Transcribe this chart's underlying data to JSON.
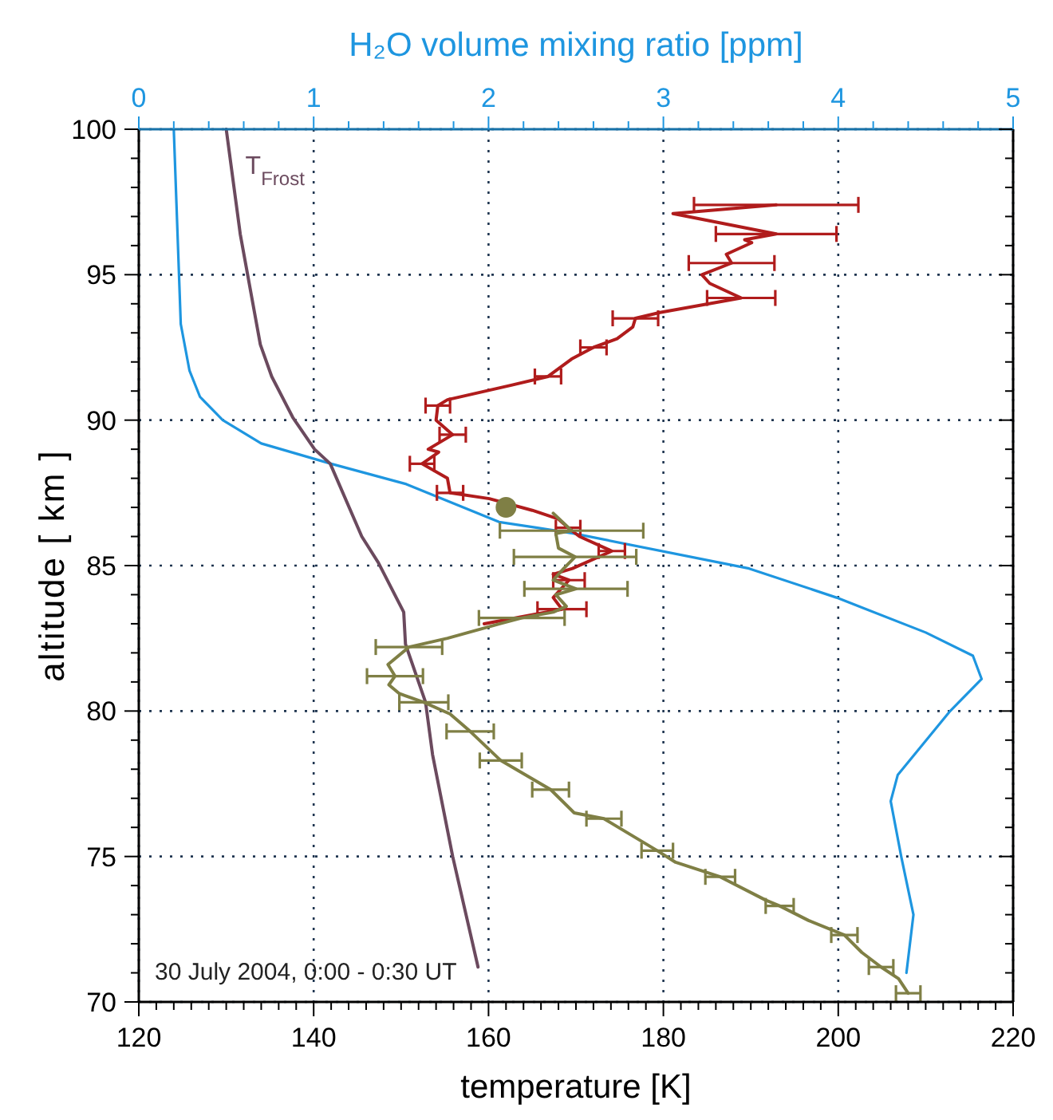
{
  "chart_data": {
    "type": "line",
    "xlabel": "temperature [K]",
    "ylabel": "altitude [ km ]",
    "x2label": "H₂O volume mixing ratio [ppm]",
    "annotations": [
      "30 July 2004, 0:00 - 0:30 UT"
    ],
    "xlim": [
      120,
      220
    ],
    "ylim": [
      70,
      100
    ],
    "x2lim": [
      0,
      5
    ],
    "xticks": [
      120,
      {
        "value": 122,
        "label": null
      },
      {
        "value": 124,
        "label": null
      },
      {
        "value": 126,
        "label": null
      },
      {
        "value": 128,
        "label": null
      },
      {
        "value": 130,
        "label": null
      },
      {
        "value": 132,
        "label": null
      },
      {
        "value": 134,
        "label": null
      },
      {
        "value": 136,
        "label": null
      },
      {
        "value": 138,
        "label": null
      },
      140,
      {
        "value": 142,
        "label": null
      },
      {
        "value": 144,
        "label": null
      },
      {
        "value": 146,
        "label": null
      },
      {
        "value": 148,
        "label": null
      },
      {
        "value": 150,
        "label": null
      },
      {
        "value": 152,
        "label": null
      },
      {
        "value": 154,
        "label": null
      },
      {
        "value": 156,
        "label": null
      },
      {
        "value": 158,
        "label": null
      },
      160,
      {
        "value": 162,
        "label": null
      },
      {
        "value": 164,
        "label": null
      },
      {
        "value": 166,
        "label": null
      },
      {
        "value": 168,
        "label": null
      },
      {
        "value": 170,
        "label": null
      },
      {
        "value": 172,
        "label": null
      },
      {
        "value": 174,
        "label": null
      },
      {
        "value": 176,
        "label": null
      },
      {
        "value": 178,
        "label": null
      },
      180,
      {
        "value": 182,
        "label": null
      },
      {
        "value": 184,
        "label": null
      },
      {
        "value": 186,
        "label": null
      },
      {
        "value": 188,
        "label": null
      },
      {
        "value": 190,
        "label": null
      },
      {
        "value": 192,
        "label": null
      },
      {
        "value": 194,
        "label": null
      },
      {
        "value": 196,
        "label": null
      },
      {
        "value": 198,
        "label": null
      },
      200,
      {
        "value": 202,
        "label": null
      },
      {
        "value": 204,
        "label": null
      },
      {
        "value": 206,
        "label": null
      },
      {
        "value": 208,
        "label": null
      },
      {
        "value": 210,
        "label": null
      },
      {
        "value": 212,
        "label": null
      },
      {
        "value": 214,
        "label": null
      },
      {
        "value": 216,
        "label": null
      },
      {
        "value": 218,
        "label": null
      },
      220
    ],
    "yticks": [
      70,
      {
        "value": 71,
        "label": null
      },
      {
        "value": 72,
        "label": null
      },
      {
        "value": 73,
        "label": null
      },
      {
        "value": 74,
        "label": null
      },
      75,
      {
        "value": 76,
        "label": null
      },
      {
        "value": 77,
        "label": null
      },
      {
        "value": 78,
        "label": null
      },
      {
        "value": 79,
        "label": null
      },
      80,
      {
        "value": 81,
        "label": null
      },
      {
        "value": 82,
        "label": null
      },
      {
        "value": 83,
        "label": null
      },
      {
        "value": 84,
        "label": null
      },
      85,
      {
        "value": 86,
        "label": null
      },
      {
        "value": 87,
        "label": null
      },
      {
        "value": 88,
        "label": null
      },
      {
        "value": 89,
        "label": null
      },
      90,
      {
        "value": 91,
        "label": null
      },
      {
        "value": 92,
        "label": null
      },
      {
        "value": 93,
        "label": null
      },
      {
        "value": 94,
        "label": null
      },
      95,
      {
        "value": 96,
        "label": null
      },
      {
        "value": 97,
        "label": null
      },
      {
        "value": 98,
        "label": null
      },
      {
        "value": 99,
        "label": null
      },
      100
    ],
    "x2ticks": [
      0,
      {
        "value": 0.2,
        "label": null
      },
      {
        "value": 0.4,
        "label": null
      },
      {
        "value": 0.6,
        "label": null
      },
      {
        "value": 0.8,
        "label": null
      },
      1,
      {
        "value": 1.2,
        "label": null
      },
      {
        "value": 1.4,
        "label": null
      },
      {
        "value": 1.6,
        "label": null
      },
      {
        "value": 1.8,
        "label": null
      },
      2,
      {
        "value": 2.2,
        "label": null
      },
      {
        "value": 2.4,
        "label": null
      },
      {
        "value": 2.6,
        "label": null
      },
      {
        "value": 2.8,
        "label": null
      },
      3,
      {
        "value": 3.2,
        "label": null
      },
      {
        "value": 3.4,
        "label": null
      },
      {
        "value": 3.6,
        "label": null
      },
      {
        "value": 3.8,
        "label": null
      },
      4,
      {
        "value": 4.2,
        "label": null
      },
      {
        "value": 4.4,
        "label": null
      },
      {
        "value": 4.6,
        "label": null
      },
      {
        "value": 4.8,
        "label": null
      },
      5
    ],
    "grid": true,
    "series": [
      {
        "axis": "x2",
        "color": "#1e96e0",
        "x": [
          0.2,
          0.24,
          0.29,
          0.35,
          0.48,
          0.7,
          1.1,
          1.53,
          2.06,
          2.28,
          2.49,
          3.49,
          3.99,
          4.5,
          4.77,
          4.82,
          4.64,
          4.34,
          4.3,
          4.36,
          4.43,
          4.39
        ],
        "values": [
          100,
          93.3,
          91.7,
          90.8,
          90.0,
          89.2,
          88.5,
          87.8,
          86.5,
          86.3,
          86.1,
          84.9,
          83.9,
          82.7,
          81.9,
          81.1,
          80.0,
          77.8,
          76.9,
          75.0,
          73.0,
          71.0
        ]
      },
      {
        "name": "T$_{Frost}$",
        "color": "#6b4a5e",
        "x": [
          130.0,
          131.6,
          133.9,
          135.2,
          137.6,
          140.1,
          141.9,
          145.5,
          147.4,
          150.3,
          150.5,
          152.8,
          153.6,
          155.9,
          158.8
        ],
        "values": [
          100,
          96.4,
          92.6,
          91.5,
          90.1,
          89.0,
          88.5,
          86.0,
          85.1,
          83.4,
          82.3,
          80.3,
          78.5,
          75.0,
          71.2
        ]
      },
      {
        "color": "#b01c1c",
        "x": [
          192.9,
          181.1,
          192.9,
          189.3,
          190.1,
          187.2,
          187.8,
          184.4,
          185.3,
          188.9,
          179.6,
          176.8,
          176.5,
          174.7,
          172.0,
          169.5,
          166.8,
          162.6,
          155.3,
          154.2,
          154.0,
          155.9,
          153.1,
          154.3,
          152.4,
          155.3,
          155.6,
          160.1,
          165.0,
          168.0,
          169.1,
          170.4,
          174.1,
          169.6,
          167.4,
          169.2,
          167.4,
          168.4,
          159.5
        ],
        "values": [
          97.4,
          97.1,
          96.4,
          96.2,
          96.1,
          95.7,
          95.4,
          95.0,
          94.7,
          94.2,
          93.7,
          93.5,
          93.2,
          92.8,
          92.5,
          92.1,
          91.5,
          91.2,
          90.7,
          90.5,
          90.0,
          89.5,
          89.0,
          88.9,
          88.5,
          88.0,
          87.5,
          87.3,
          86.9,
          86.6,
          86.3,
          86.0,
          85.5,
          84.9,
          84.7,
          84.5,
          83.9,
          83.5,
          83.0
        ],
        "xerrors": [
          9.4,
          null,
          6.9,
          null,
          null,
          null,
          4.9,
          null,
          null,
          3.9,
          null,
          2.6,
          null,
          null,
          1.5,
          null,
          1.5,
          null,
          null,
          1.4,
          null,
          1.5,
          null,
          null,
          1.4,
          null,
          1.5,
          null,
          null,
          null,
          1.4,
          null,
          1.5,
          null,
          null,
          1.8,
          null,
          2.8,
          null
        ]
      },
      {
        "color": "#7f7f45",
        "x": [
          167.4,
          169.5,
          167.7,
          168.0,
          169.9,
          168.6,
          167.4,
          170.0,
          167.7,
          168.9,
          167.4,
          163.8,
          161.3,
          155.3,
          150.9,
          148.5,
          149.3,
          148.6,
          149.8,
          152.6,
          155.6,
          157.9,
          161.4,
          167.1,
          169.8,
          173.2,
          179.3,
          181.4,
          186.5,
          191.7,
          193.3,
          196.6,
          200.7,
          202.7,
          204.9,
          206.9,
          208.0
        ],
        "values": [
          86.8,
          86.2,
          86.1,
          85.6,
          85.3,
          84.9,
          84.5,
          84.2,
          84.0,
          83.6,
          83.4,
          83.2,
          83.0,
          82.5,
          82.2,
          81.6,
          81.2,
          80.9,
          80.6,
          80.3,
          79.9,
          79.3,
          78.3,
          77.3,
          76.5,
          76.3,
          75.2,
          74.8,
          74.3,
          73.5,
          73.3,
          72.8,
          72.3,
          71.7,
          71.2,
          70.8,
          70.3
        ],
        "xerrors": [
          null,
          8.2,
          null,
          null,
          7.0,
          null,
          null,
          5.9,
          null,
          null,
          null,
          4.9,
          null,
          null,
          3.8,
          null,
          3.2,
          null,
          null,
          2.8,
          null,
          2.7,
          2.4,
          2.1,
          null,
          2.0,
          1.8,
          null,
          1.7,
          null,
          1.6,
          null,
          1.5,
          null,
          1.4,
          null,
          1.4
        ]
      },
      {
        "type": "scatter",
        "marker": "circle",
        "color": "#7f7f45",
        "x": [
          162.0
        ],
        "values": [
          87.0
        ]
      }
    ]
  }
}
